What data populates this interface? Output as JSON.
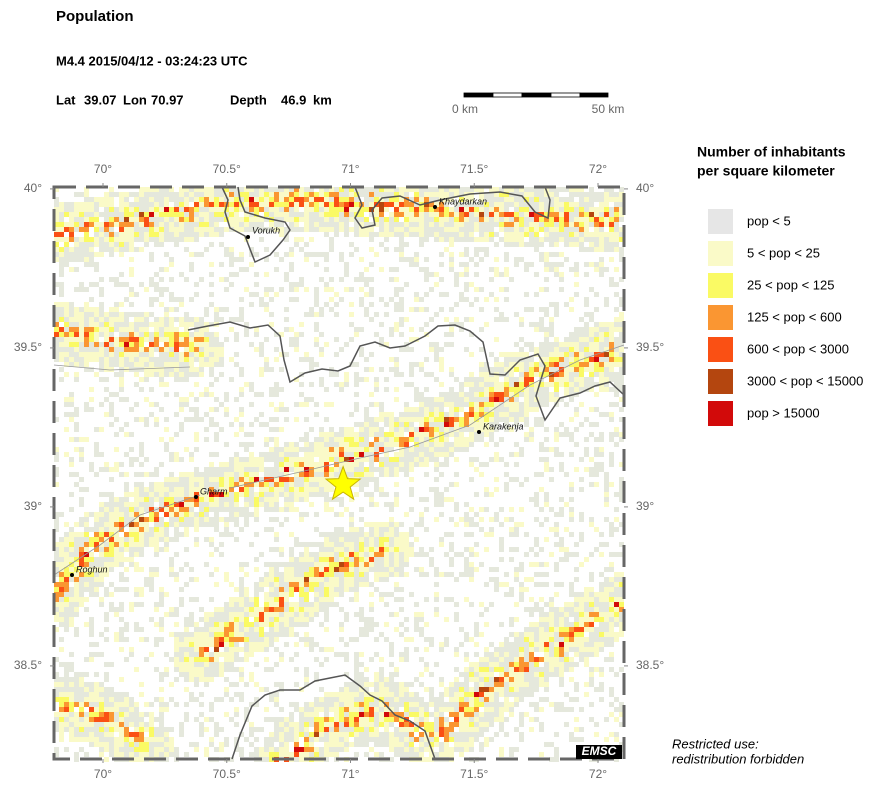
{
  "header": {
    "title": "Population",
    "event": "M4.4  2015/04/12 - 03:24:23 UTC",
    "lat": {
      "label": "Lat",
      "value": 39.07
    },
    "lon": {
      "label": "Lon",
      "value": 70.97
    },
    "depth": {
      "label": "Depth",
      "value": 46.9,
      "unit": "km"
    }
  },
  "scale_bar": {
    "start": "0 km",
    "end": "50 km"
  },
  "map": {
    "lon_ticks": [
      {
        "value": 70,
        "label": "70°"
      },
      {
        "value": 70.5,
        "label": "70.5°"
      },
      {
        "value": 71,
        "label": "71°"
      },
      {
        "value": 71.5,
        "label": "71.5°"
      },
      {
        "value": 72,
        "label": "72°"
      }
    ],
    "lat_ticks": [
      {
        "value": 40,
        "label": "40°"
      },
      {
        "value": 39.5,
        "label": "39.5°"
      },
      {
        "value": 39,
        "label": "39°"
      },
      {
        "value": 38.5,
        "label": "38.5°"
      }
    ],
    "cities": [
      {
        "name": "Vorukh"
      },
      {
        "name": "Khaydarkan"
      },
      {
        "name": "Karakenja"
      },
      {
        "name": "Gharm"
      },
      {
        "name": "Roghun"
      }
    ],
    "logo": "EMSC"
  },
  "legend": {
    "title": [
      "Number of inhabitants",
      "per square kilometer"
    ],
    "items": [
      {
        "label": "pop < 5",
        "color": "#e6e6e6"
      },
      {
        "label": "5 < pop < 25",
        "color": "#fafac8"
      },
      {
        "label": "25 < pop < 125",
        "color": "#fafa64"
      },
      {
        "label": "125 < pop < 600",
        "color": "#fa9632"
      },
      {
        "label": "600 < pop < 3000",
        "color": "#fa5014"
      },
      {
        "label": "3000 < pop < 15000",
        "color": "#b4460f"
      },
      {
        "label": "pop > 15000",
        "color": "#d20a0a"
      }
    ]
  },
  "footer": [
    "Restricted use:",
    "redistribution forbidden"
  ]
}
